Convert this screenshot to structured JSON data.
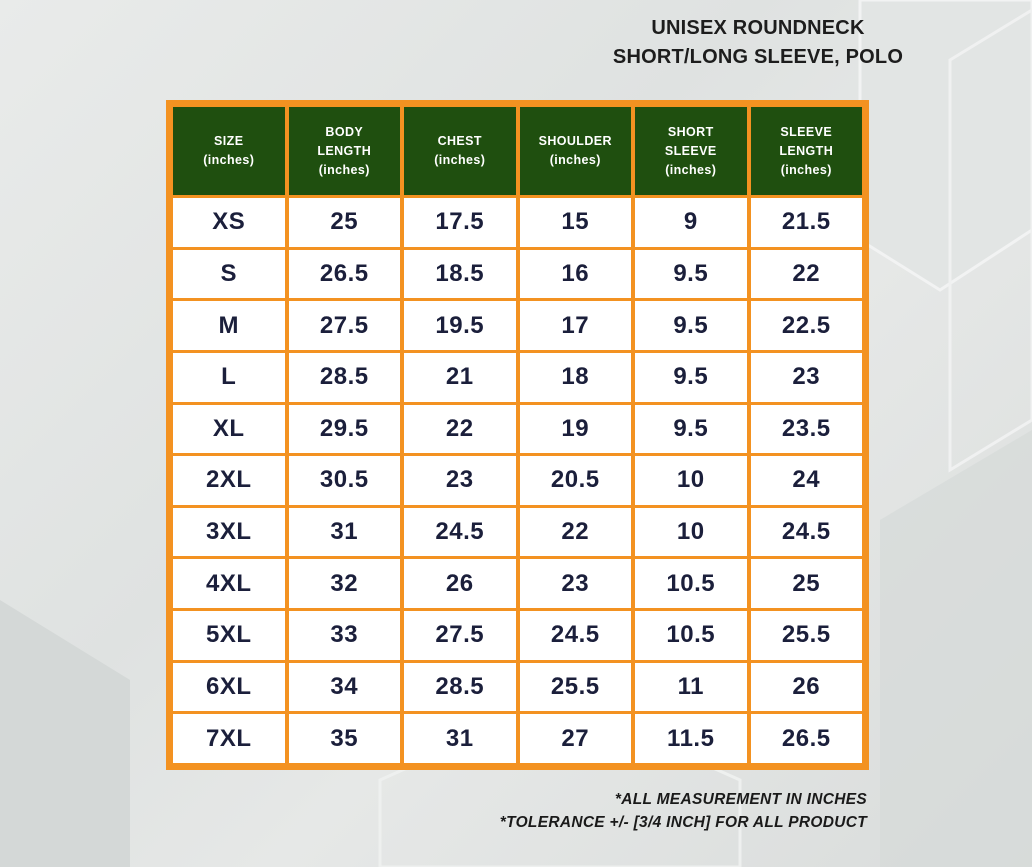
{
  "title": {
    "line1": "UNISEX ROUNDNECK",
    "line2": "SHORT/LONG SLEEVE, POLO"
  },
  "table": {
    "headers": [
      {
        "lines": [
          "SIZE",
          "(inches)"
        ]
      },
      {
        "lines": [
          "BODY",
          "LENGTH",
          "(inches)"
        ]
      },
      {
        "lines": [
          "CHEST",
          "(inches)"
        ]
      },
      {
        "lines": [
          "SHOULDER",
          "(inches)"
        ]
      },
      {
        "lines": [
          "SHORT",
          "SLEEVE",
          "(inches)"
        ]
      },
      {
        "lines": [
          "SLEEVE",
          "LENGTH",
          "(inches)"
        ]
      }
    ],
    "rows": [
      [
        "XS",
        "25",
        "17.5",
        "15",
        "9",
        "21.5"
      ],
      [
        "S",
        "26.5",
        "18.5",
        "16",
        "9.5",
        "22"
      ],
      [
        "M",
        "27.5",
        "19.5",
        "17",
        "9.5",
        "22.5"
      ],
      [
        "L",
        "28.5",
        "21",
        "18",
        "9.5",
        "23"
      ],
      [
        "XL",
        "29.5",
        "22",
        "19",
        "9.5",
        "23.5"
      ],
      [
        "2XL",
        "30.5",
        "23",
        "20.5",
        "10",
        "24"
      ],
      [
        "3XL",
        "31",
        "24.5",
        "22",
        "10",
        "24.5"
      ],
      [
        "4XL",
        "32",
        "26",
        "23",
        "10.5",
        "25"
      ],
      [
        "5XL",
        "33",
        "27.5",
        "24.5",
        "10.5",
        "25.5"
      ],
      [
        "6XL",
        "34",
        "28.5",
        "25.5",
        "11",
        "26"
      ],
      [
        "7XL",
        "35",
        "31",
        "27",
        "11.5",
        "26.5"
      ]
    ]
  },
  "notes": {
    "line1": "*ALL MEASUREMENT IN INCHES",
    "line2": "*TOLERANCE +/- [3/4 INCH] FOR ALL PRODUCT"
  },
  "colors": {
    "frame": "#f39221",
    "header_bg": "#1f4f0f",
    "header_text": "#ffffff",
    "cell_text": "#1b1f3b"
  }
}
